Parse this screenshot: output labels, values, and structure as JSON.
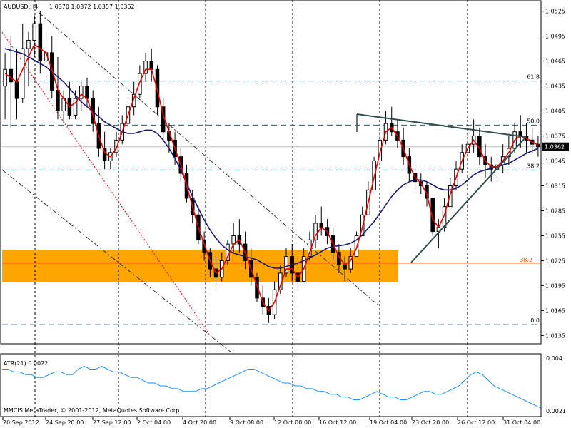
{
  "chart_data": [
    {
      "type": "candlestick",
      "header": {
        "symbol": "AUDUSD,H4",
        "quote": "1.0370 1.0372 1.0357 1.0362"
      },
      "ylim": [
        1.0125,
        1.0535
      ],
      "price_ticks": [
        "1.0525",
        "1.0495",
        "1.0465",
        "1.0435",
        "1.0405",
        "1.0375",
        "1.0345",
        "1.0315",
        "1.0285",
        "1.0255",
        "1.0225",
        "1.0195",
        "1.0165",
        "1.0135"
      ],
      "date_labels": [
        "20 Sep 2012",
        "24 Sep 20:00",
        "27 Sep 12:00",
        "2 Oct 04:00",
        "4 Oct 20:00",
        "9 Oct 08:00",
        "12 Oct 00:00",
        "16 Oct 12:00",
        "19 Oct 04:00",
        "23 Oct 20:00",
        "26 Oct 12:00",
        "31 Oct 04:00"
      ],
      "current_price": "1.0362",
      "fib_levels": [
        {
          "label": "61.8",
          "price": 1.0441
        },
        {
          "label": "50.0",
          "price": 1.0388
        },
        {
          "label": "38.2",
          "price": 1.0334
        },
        {
          "label": "0.0",
          "price": 1.0148
        }
      ],
      "support_zone": {
        "low": 1.0199,
        "high": 1.0238,
        "line": 1.0222,
        "label": "38.2"
      },
      "colors": {
        "zone": "#ffa500",
        "fast_ma": "#e60000",
        "slow_ma": "#191970",
        "fib": "#1e5f78",
        "candle": "#000000",
        "zone_line": "#ff4500"
      },
      "candles_hlc": [
        [
          1.0475,
          1.0395,
          1.0455
        ],
        [
          1.0495,
          1.0385,
          1.044
        ],
        [
          1.048,
          1.0395,
          1.042
        ],
        [
          1.051,
          1.0415,
          1.048
        ],
        [
          1.05,
          1.0435,
          1.049
        ],
        [
          1.052,
          1.047,
          1.051
        ],
        [
          1.0525,
          1.045,
          1.0465
        ],
        [
          1.05,
          1.0445,
          1.0475
        ],
        [
          1.0495,
          1.042,
          1.043
        ],
        [
          1.047,
          1.0395,
          1.0405
        ],
        [
          1.043,
          1.039,
          1.042
        ],
        [
          1.044,
          1.0395,
          1.04
        ],
        [
          1.043,
          1.0395,
          1.042
        ],
        [
          1.044,
          1.0405,
          1.0435
        ],
        [
          1.0445,
          1.041,
          1.042
        ],
        [
          1.043,
          1.038,
          1.039
        ],
        [
          1.041,
          1.035,
          1.036
        ],
        [
          1.038,
          1.0335,
          1.0345
        ],
        [
          1.036,
          1.0335,
          1.0355
        ],
        [
          1.038,
          1.035,
          1.037
        ],
        [
          1.04,
          1.0365,
          1.039
        ],
        [
          1.042,
          1.0385,
          1.041
        ],
        [
          1.044,
          1.04,
          1.0425
        ],
        [
          1.046,
          1.042,
          1.045
        ],
        [
          1.0475,
          1.044,
          1.0465
        ],
        [
          1.048,
          1.044,
          1.0455
        ],
        [
          1.046,
          1.04,
          1.041
        ],
        [
          1.042,
          1.037,
          1.038
        ],
        [
          1.039,
          1.0355,
          1.037
        ],
        [
          1.038,
          1.034,
          1.035
        ],
        [
          1.036,
          1.032,
          1.033
        ],
        [
          1.034,
          1.0295,
          1.03
        ],
        [
          1.031,
          1.027,
          1.028
        ],
        [
          1.029,
          1.0245,
          1.025
        ],
        [
          1.026,
          1.0225,
          1.0235
        ],
        [
          1.024,
          1.0205,
          1.0215
        ],
        [
          1.023,
          1.0195,
          1.0205
        ],
        [
          1.0235,
          1.02,
          1.0225
        ],
        [
          1.025,
          1.022,
          1.0245
        ],
        [
          1.027,
          1.0235,
          1.0255
        ],
        [
          1.0275,
          1.0235,
          1.0245
        ],
        [
          1.026,
          1.0215,
          1.0225
        ],
        [
          1.024,
          1.0195,
          1.0205
        ],
        [
          1.021,
          1.0175,
          1.018
        ],
        [
          1.0195,
          1.016,
          1.017
        ],
        [
          1.018,
          1.015,
          1.016
        ],
        [
          1.02,
          1.0155,
          1.019
        ],
        [
          1.022,
          1.0185,
          1.021
        ],
        [
          1.024,
          1.0205,
          1.023
        ],
        [
          1.0245,
          1.02,
          1.021
        ],
        [
          1.023,
          1.019,
          1.02
        ],
        [
          1.024,
          1.02,
          1.023
        ],
        [
          1.026,
          1.0225,
          1.025
        ],
        [
          1.028,
          1.024,
          1.027
        ],
        [
          1.029,
          1.0255,
          1.0265
        ],
        [
          1.0275,
          1.0245,
          1.0255
        ],
        [
          1.0265,
          1.0225,
          1.0235
        ],
        [
          1.0245,
          1.021,
          1.022
        ],
        [
          1.023,
          1.02,
          1.0215
        ],
        [
          1.024,
          1.021,
          1.023
        ],
        [
          1.026,
          1.023,
          1.0255
        ],
        [
          1.029,
          1.0255,
          1.028
        ],
        [
          1.032,
          1.028,
          1.031
        ],
        [
          1.035,
          1.031,
          1.0345
        ],
        [
          1.038,
          1.034,
          1.037
        ],
        [
          1.0405,
          1.0365,
          1.039
        ],
        [
          1.041,
          1.0375,
          1.038
        ],
        [
          1.0395,
          1.036,
          1.037
        ],
        [
          1.0385,
          1.034,
          1.035
        ],
        [
          1.036,
          1.032,
          1.033
        ],
        [
          1.034,
          1.031,
          1.032
        ],
        [
          1.033,
          1.0305,
          1.0315
        ],
        [
          1.032,
          1.029,
          1.03
        ],
        [
          1.03,
          1.0255,
          1.026
        ],
        [
          1.0275,
          1.024,
          1.0265
        ],
        [
          1.03,
          1.026,
          1.029
        ],
        [
          1.0325,
          1.029,
          1.0315
        ],
        [
          1.0345,
          1.031,
          1.0335
        ],
        [
          1.0365,
          1.033,
          1.0355
        ],
        [
          1.0385,
          1.0345,
          1.0365
        ],
        [
          1.0395,
          1.0355,
          1.0375
        ],
        [
          1.0385,
          1.034,
          1.035
        ],
        [
          1.0365,
          1.0325,
          1.034
        ],
        [
          1.035,
          1.032,
          1.0335
        ],
        [
          1.035,
          1.032,
          1.034
        ],
        [
          1.0365,
          1.033,
          1.035
        ],
        [
          1.0375,
          1.034,
          1.036
        ],
        [
          1.039,
          1.0355,
          1.038
        ],
        [
          1.04,
          1.036,
          1.0375
        ],
        [
          1.039,
          1.0355,
          1.037
        ],
        [
          1.0385,
          1.0355,
          1.0365
        ],
        [
          1.0375,
          1.035,
          1.0362
        ]
      ],
      "fast_ma": [
        1.045,
        1.0445,
        1.044,
        1.0455,
        1.047,
        1.0485,
        1.048,
        1.0475,
        1.0455,
        1.043,
        1.042,
        1.041,
        1.0415,
        1.0425,
        1.042,
        1.04,
        1.0375,
        1.0355,
        1.035,
        1.036,
        1.038,
        1.04,
        1.042,
        1.044,
        1.0455,
        1.0455,
        1.043,
        1.04,
        1.038,
        1.036,
        1.034,
        1.0315,
        1.029,
        1.0265,
        1.0245,
        1.0225,
        1.021,
        1.0215,
        1.023,
        1.0245,
        1.025,
        1.0235,
        1.0215,
        1.0195,
        1.0175,
        1.0165,
        1.0175,
        1.0195,
        1.0215,
        1.0215,
        1.0205,
        1.0215,
        1.0235,
        1.0255,
        1.0265,
        1.026,
        1.0245,
        1.023,
        1.022,
        1.0225,
        1.024,
        1.0265,
        1.0295,
        1.0325,
        1.0355,
        1.038,
        1.0385,
        1.0375,
        1.036,
        1.034,
        1.0325,
        1.0318,
        1.0305,
        1.0275,
        1.0265,
        1.028,
        1.0305,
        1.0325,
        1.0345,
        1.036,
        1.037,
        1.036,
        1.0345,
        1.0338,
        1.0338,
        1.0345,
        1.0355,
        1.037,
        1.0375,
        1.0372,
        1.0368,
        1.0364
      ],
      "slow_ma": [
        1.048,
        1.0478,
        1.0476,
        1.0474,
        1.047,
        1.0466,
        1.0462,
        1.0458,
        1.0452,
        1.0446,
        1.044,
        1.0432,
        1.0424,
        1.0416,
        1.041,
        1.0404,
        1.0398,
        1.0392,
        1.0388,
        1.0384,
        1.038,
        1.0378,
        1.0378,
        1.038,
        1.0382,
        1.0382,
        1.0378,
        1.037,
        1.036,
        1.0348,
        1.0334,
        1.0318,
        1.0302,
        1.0288,
        1.0274,
        1.0262,
        1.0252,
        1.0244,
        1.0238,
        1.0234,
        1.0232,
        1.023,
        1.0228,
        1.0226,
        1.0222,
        1.0218,
        1.0216,
        1.0216,
        1.0218,
        1.022,
        1.0222,
        1.0225,
        1.0228,
        1.0232,
        1.0236,
        1.024,
        1.0242,
        1.0243,
        1.0244,
        1.0246,
        1.025,
        1.0256,
        1.0264,
        1.0272,
        1.0282,
        1.0292,
        1.0302,
        1.031,
        1.0316,
        1.032,
        1.0322,
        1.0322,
        1.032,
        1.0316,
        1.0312,
        1.031,
        1.031,
        1.0312,
        1.0316,
        1.0322,
        1.0328,
        1.0332,
        1.0334,
        1.0336,
        1.0338,
        1.034,
        1.0342,
        1.0346,
        1.035,
        1.0354,
        1.0357,
        1.036
      ]
    },
    {
      "type": "line",
      "title": "ATR(21) 0.0022",
      "ylim": [
        0.002,
        0.0041
      ],
      "ticks": [
        "0.004",
        "0.0021"
      ],
      "values": [
        0.0036,
        0.0036,
        0.0035,
        0.0035,
        0.0034,
        0.0034,
        0.0033,
        0.0033,
        0.0034,
        0.0035,
        0.0035,
        0.0034,
        0.0034,
        0.0036,
        0.0037,
        0.0036,
        0.0036,
        0.0037,
        0.0036,
        0.0035,
        0.0035,
        0.0034,
        0.0033,
        0.0033,
        0.0032,
        0.0031,
        0.0031,
        0.003,
        0.003,
        0.0029,
        0.0029,
        0.0028,
        0.0028,
        0.0028,
        0.0029,
        0.0029,
        0.003,
        0.0031,
        0.0032,
        0.0033,
        0.0034,
        0.0035,
        0.0036,
        0.0036,
        0.0035,
        0.0034,
        0.0033,
        0.0032,
        0.0031,
        0.0031,
        0.003,
        0.003,
        0.0029,
        0.0029,
        0.0028,
        0.0028,
        0.0027,
        0.0027,
        0.0026,
        0.0026,
        0.0025,
        0.0025,
        0.0026,
        0.0027,
        0.0028,
        0.0027,
        0.0026,
        0.0026,
        0.0025,
        0.0025,
        0.0026,
        0.0027,
        0.0028,
        0.0028,
        0.0027,
        0.0027,
        0.0028,
        0.0029,
        0.003,
        0.0032,
        0.0034,
        0.0035,
        0.0034,
        0.0032,
        0.003,
        0.0029,
        0.0028,
        0.0027,
        0.0026,
        0.0025,
        0.0024,
        0.0023,
        0.0022
      ],
      "color": "#1e90ff"
    }
  ],
  "footer": "MMCIS MetaTrader, © 2001-2012, MetaQuotes Software Corp."
}
